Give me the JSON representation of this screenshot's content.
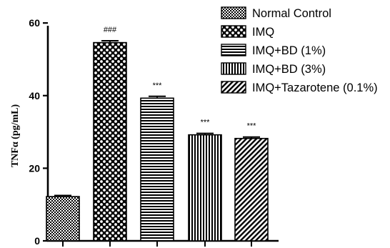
{
  "chart_data": {
    "type": "bar",
    "ylabel": "TNFα (pg/mL)",
    "xlabel": "",
    "ylim": [
      0,
      62
    ],
    "yticks": [
      0,
      20,
      40,
      60
    ],
    "grid": false,
    "legend_position": "top-right",
    "series": [
      {
        "name": "Normal Control",
        "value": 12.2,
        "error": 0.3,
        "annotation": "",
        "pattern": "checker-fine"
      },
      {
        "name": "IMQ",
        "value": 54.6,
        "error": 0.5,
        "annotation": "###",
        "pattern": "checker-dots"
      },
      {
        "name": "IMQ+BD (1%)",
        "value": 39.3,
        "error": 0.5,
        "annotation": "***",
        "pattern": "horizontal-lines"
      },
      {
        "name": "IMQ+BD (3%)",
        "value": 29.2,
        "error": 0.4,
        "annotation": "***",
        "pattern": "vertical-lines"
      },
      {
        "name": "IMQ+Tazarotene (0.1%)",
        "value": 28.2,
        "error": 0.4,
        "annotation": "***",
        "pattern": "diagonal-lines"
      }
    ]
  }
}
